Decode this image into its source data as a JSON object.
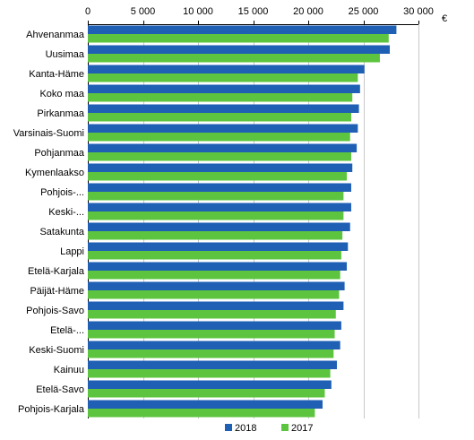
{
  "chart_data": {
    "type": "bar",
    "orientation": "horizontal",
    "title": "",
    "xlabel": "",
    "ylabel": "",
    "unit": "€",
    "xlim": [
      0,
      30000
    ],
    "x_ticks": [
      0,
      5000,
      10000,
      15000,
      20000,
      25000,
      30000
    ],
    "x_tick_labels": [
      "0",
      "5 000",
      "10 000",
      "15 000",
      "20 000",
      "25 000",
      "30 000"
    ],
    "grid": true,
    "legend_position": "bottom",
    "categories": [
      "Ahvenanmaa",
      "Uusimaa",
      "Kanta-Häme",
      "Koko maa",
      "Pirkanmaa",
      "Varsinais-Suomi",
      "Pohjanmaa",
      "Kymenlaakso",
      "Pohjois-...",
      "Keski-...",
      "Satakunta",
      "Lappi",
      "Etelä-Karjala",
      "Päijät-Häme",
      "Pohjois-Savo",
      "Etelä-...",
      "Keski-Suomi",
      "Kainuu",
      "Etelä-Savo",
      "Pohjois-Karjala"
    ],
    "series": [
      {
        "name": "2018",
        "color": "#1f5fb4",
        "values": [
          28000,
          27400,
          25100,
          24700,
          24600,
          24500,
          24400,
          24000,
          23900,
          23900,
          23800,
          23600,
          23500,
          23300,
          23200,
          23000,
          22900,
          22600,
          22100,
          21300
        ]
      },
      {
        "name": "2017",
        "color": "#5cc43e",
        "values": [
          27300,
          26500,
          24500,
          24000,
          23900,
          23800,
          23900,
          23500,
          23200,
          23200,
          23100,
          23000,
          22900,
          22800,
          22500,
          22400,
          22300,
          22000,
          21500,
          20600
        ]
      }
    ]
  }
}
